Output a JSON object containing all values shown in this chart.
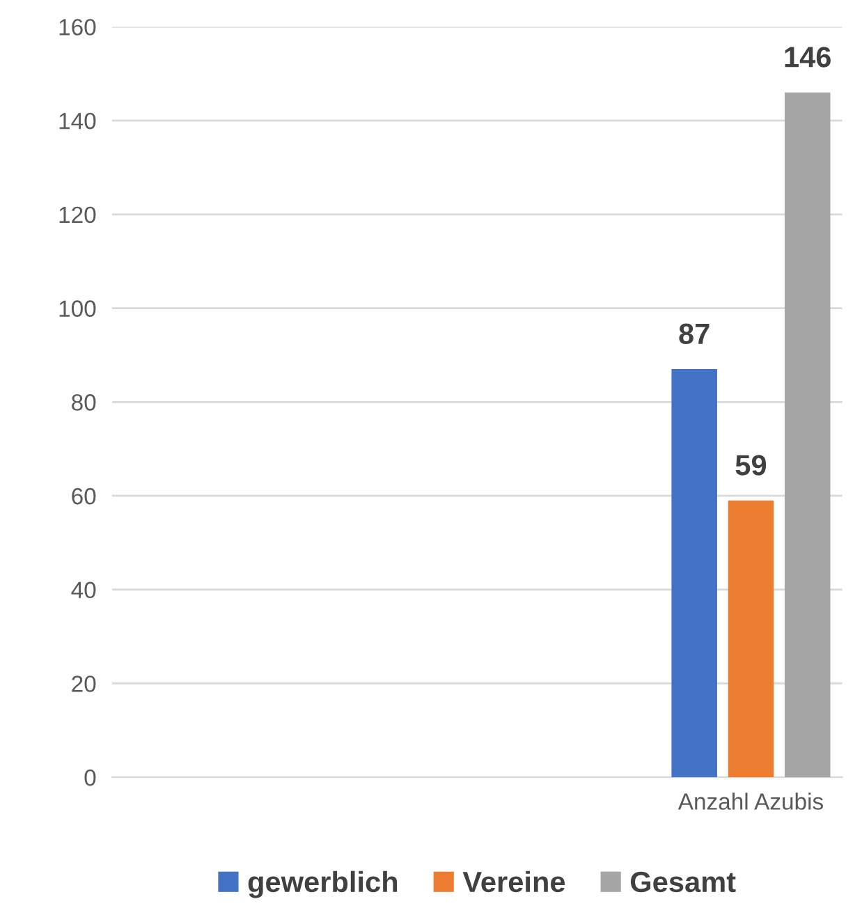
{
  "chart_data": {
    "type": "bar",
    "categories": [
      null,
      null,
      null,
      "Anzahl Azubis"
    ],
    "series": [
      {
        "name": "gewerblich",
        "color": "#4472c4",
        "values": [
          null,
          null,
          null,
          87
        ]
      },
      {
        "name": "Vereine",
        "color": "#ed7d31",
        "values": [
          null,
          null,
          null,
          59
        ]
      },
      {
        "name": "Gesamt",
        "color": "#a5a5a5",
        "values": [
          null,
          null,
          null,
          146
        ]
      }
    ],
    "ylim": [
      0,
      160
    ],
    "yticks": [
      0,
      20,
      40,
      60,
      80,
      100,
      120,
      140,
      160
    ],
    "grid": "y",
    "legend": "bottom",
    "data_labels": true
  }
}
